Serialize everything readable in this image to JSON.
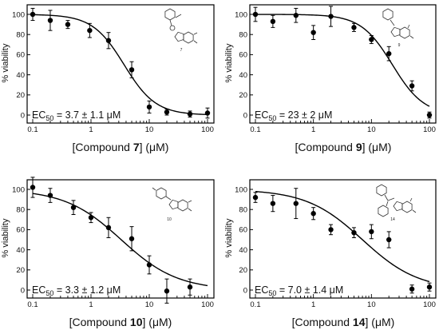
{
  "chart_data": [
    {
      "type": "scatter",
      "xscale": "log",
      "xlim": [
        0.1,
        100
      ],
      "ylim": [
        0,
        100
      ],
      "x_ticks": [
        "0.1",
        "1",
        "10",
        "100"
      ],
      "y_ticks": [
        "0",
        "20",
        "40",
        "60",
        "80",
        "100"
      ],
      "ylabel": "% viability",
      "xlabel_pre": "[Compound ",
      "xlabel_num": "7",
      "xlabel_post": "] (μM)",
      "ec_pre": "EC",
      "ec_sub": "50",
      "ec_post": " = 3.7 ± 1.1 μM",
      "ec50": 3.7,
      "hill": 1.6,
      "structure_label": "7",
      "points": [
        {
          "x": 0.1,
          "y": 100,
          "err": 6
        },
        {
          "x": 0.2,
          "y": 94,
          "err": 10
        },
        {
          "x": 0.4,
          "y": 90,
          "err": 4
        },
        {
          "x": 0.95,
          "y": 84,
          "err": 7
        },
        {
          "x": 2,
          "y": 74,
          "err": 8
        },
        {
          "x": 5,
          "y": 45,
          "err": 8
        },
        {
          "x": 10,
          "y": 8,
          "err": 6
        },
        {
          "x": 20,
          "y": 3,
          "err": 3
        },
        {
          "x": 50,
          "y": 1,
          "err": 3
        },
        {
          "x": 100,
          "y": 2,
          "err": 5
        }
      ]
    },
    {
      "type": "scatter",
      "xscale": "log",
      "xlim": [
        0.1,
        100
      ],
      "ylim": [
        0,
        100
      ],
      "x_ticks": [
        "0.1",
        "1",
        "10",
        "100"
      ],
      "y_ticks": [
        "0",
        "20",
        "40",
        "60",
        "80",
        "100"
      ],
      "ylabel": "% viability",
      "xlabel_pre": "[Compound ",
      "xlabel_num": "9",
      "xlabel_post": "] (μM)",
      "ec_pre": "EC",
      "ec_sub": "50",
      "ec_post": " = 23 ± 2 μM",
      "ec50": 23,
      "hill": 1.6,
      "structure_label": "9",
      "points": [
        {
          "x": 0.1,
          "y": 100,
          "err": 7
        },
        {
          "x": 0.2,
          "y": 93,
          "err": 6
        },
        {
          "x": 0.5,
          "y": 99,
          "err": 7
        },
        {
          "x": 1,
          "y": 82,
          "err": 7
        },
        {
          "x": 2,
          "y": 98,
          "err": 10
        },
        {
          "x": 5,
          "y": 87,
          "err": 4
        },
        {
          "x": 10,
          "y": 75,
          "err": 4
        },
        {
          "x": 20,
          "y": 61,
          "err": 7
        },
        {
          "x": 50,
          "y": 29,
          "err": 5
        },
        {
          "x": 100,
          "y": 0,
          "err": 3
        }
      ]
    },
    {
      "type": "scatter",
      "xscale": "log",
      "xlim": [
        0.1,
        100
      ],
      "ylim": [
        0,
        100
      ],
      "x_ticks": [
        "0.1",
        "1",
        "10",
        "100"
      ],
      "y_ticks": [
        "0",
        "20",
        "40",
        "60",
        "80",
        "100"
      ],
      "ylabel": "% viability",
      "xlabel_pre": "[Compound ",
      "xlabel_num": "10",
      "xlabel_post": "] (μM)",
      "ec_pre": "EC",
      "ec_sub": "50",
      "ec_post": " = 3.3 ± 1.2 μM",
      "ec50": 3.3,
      "hill": 0.9,
      "structure_label": "10",
      "points": [
        {
          "x": 0.1,
          "y": 102,
          "err": 10
        },
        {
          "x": 0.2,
          "y": 94,
          "err": 7
        },
        {
          "x": 0.5,
          "y": 82,
          "err": 7
        },
        {
          "x": 1,
          "y": 72,
          "err": 5
        },
        {
          "x": 2,
          "y": 62,
          "err": 10
        },
        {
          "x": 5,
          "y": 51,
          "err": 12
        },
        {
          "x": 10,
          "y": 25,
          "err": 9
        },
        {
          "x": 20,
          "y": -1,
          "err": 12
        },
        {
          "x": 50,
          "y": 3,
          "err": 8
        }
      ]
    },
    {
      "type": "scatter",
      "xscale": "log",
      "xlim": [
        0.1,
        100
      ],
      "ylim": [
        0,
        100
      ],
      "x_ticks": [
        "0.1",
        "1",
        "10",
        "100"
      ],
      "y_ticks": [
        "0",
        "20",
        "40",
        "60",
        "80",
        "100"
      ],
      "ylabel": "% viability",
      "xlabel_pre": "[Compound ",
      "xlabel_num": "14",
      "xlabel_post": "] (μM)",
      "ec_pre": "EC",
      "ec_sub": "50",
      "ec_post": " = 7.0 ± 1.4 μM",
      "ec50": 7.0,
      "hill": 0.9,
      "structure_label": "14",
      "points": [
        {
          "x": 0.1,
          "y": 92,
          "err": 5
        },
        {
          "x": 0.2,
          "y": 86,
          "err": 8
        },
        {
          "x": 0.5,
          "y": 86,
          "err": 15
        },
        {
          "x": 1,
          "y": 76,
          "err": 6
        },
        {
          "x": 2,
          "y": 60,
          "err": 5
        },
        {
          "x": 5,
          "y": 57,
          "err": 5
        },
        {
          "x": 10,
          "y": 58,
          "err": 7
        },
        {
          "x": 20,
          "y": 50,
          "err": 8
        },
        {
          "x": 50,
          "y": 1,
          "err": 4
        },
        {
          "x": 100,
          "y": 3,
          "err": 4
        }
      ]
    }
  ]
}
